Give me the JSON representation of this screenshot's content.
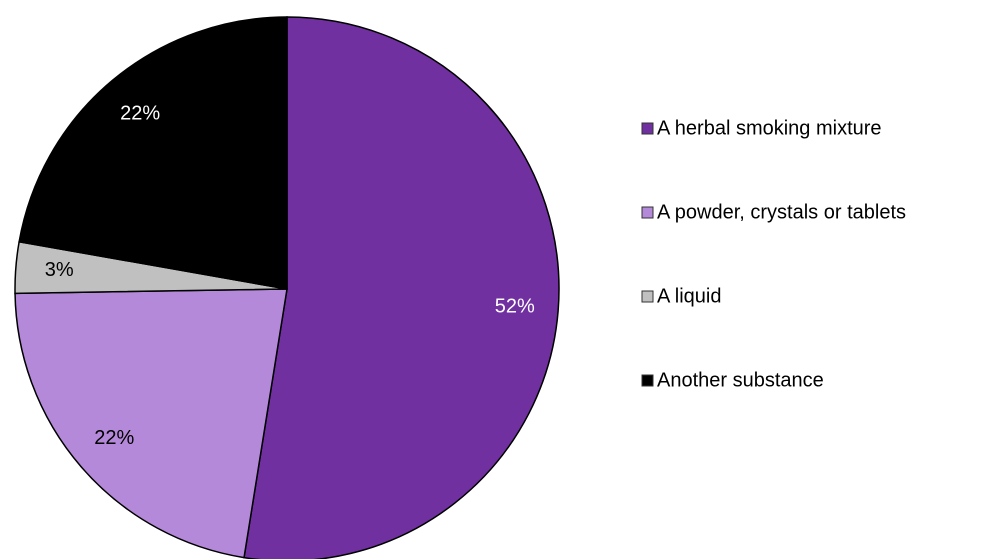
{
  "chart_data": {
    "type": "pie",
    "categories": [
      "A herbal smoking mixture",
      "A powder, crystals or tablets",
      "A liquid",
      "Another substance"
    ],
    "values": [
      52,
      22,
      3,
      22
    ],
    "value_labels": [
      "52%",
      "22%",
      "3%",
      "22%"
    ],
    "colors": [
      "#7030a0",
      "#b589da",
      "#c0c0c0",
      "#000000"
    ],
    "legend": "right"
  }
}
